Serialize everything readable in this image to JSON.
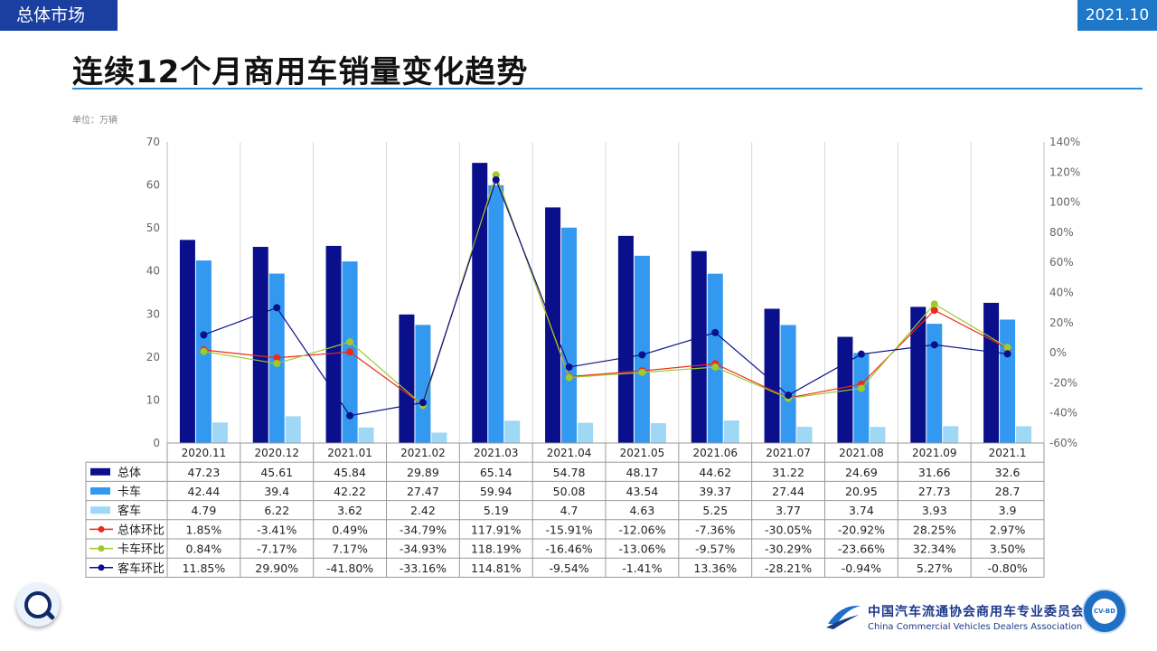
{
  "header": {
    "section_tag": "总体市场",
    "period_tag": "2021.10",
    "title": "连续12个月商用车销量变化趋势",
    "unit": "单位：万辆"
  },
  "footer": {
    "org_cn": "中国汽车流通协会商用车专业委员会",
    "org_en": "China Commercial Vehicles Dealers Association",
    "seal_text": "CV-BD"
  },
  "colors": {
    "total": "#0a0f8c",
    "truck": "#3399f0",
    "bus": "#9fd8f5",
    "total_mom": "#ee2a1a",
    "truck_mom": "#9ccb2e",
    "bus_mom": "#0a0f8c"
  },
  "chart_data": {
    "type": "bar",
    "categories": [
      "2020.11",
      "2020.12",
      "2021.01",
      "2021.02",
      "2021.03",
      "2021.04",
      "2021.05",
      "2021.06",
      "2021.07",
      "2021.08",
      "2021.09",
      "2021.1"
    ],
    "y_left": {
      "min": 0,
      "max": 70,
      "ticks": [
        0,
        10,
        20,
        30,
        40,
        50,
        60,
        70
      ]
    },
    "y_right": {
      "min": -60,
      "max": 140,
      "ticks": [
        "-60%",
        "-40%",
        "-20%",
        "0%",
        "20%",
        "40%",
        "60%",
        "80%",
        "100%",
        "120%",
        "140%"
      ]
    },
    "series": [
      {
        "name": "总体",
        "kind": "bar",
        "color_key": "total",
        "display": [
          "47.23",
          "45.61",
          "45.84",
          "29.89",
          "65.14",
          "54.78",
          "48.17",
          "44.62",
          "31.22",
          "24.69",
          "31.66",
          "32.6"
        ],
        "values": [
          47.23,
          45.61,
          45.84,
          29.89,
          65.14,
          54.78,
          48.17,
          44.62,
          31.22,
          24.69,
          31.66,
          32.6
        ]
      },
      {
        "name": "卡车",
        "kind": "bar",
        "color_key": "truck",
        "display": [
          "42.44",
          "39.4",
          "42.22",
          "27.47",
          "59.94",
          "50.08",
          "43.54",
          "39.37",
          "27.44",
          "20.95",
          "27.73",
          "28.7"
        ],
        "values": [
          42.44,
          39.4,
          42.22,
          27.47,
          59.94,
          50.08,
          43.54,
          39.37,
          27.44,
          20.95,
          27.73,
          28.7
        ]
      },
      {
        "name": "客车",
        "kind": "bar",
        "color_key": "bus",
        "display": [
          "4.79",
          "6.22",
          "3.62",
          "2.42",
          "5.19",
          "4.7",
          "4.63",
          "5.25",
          "3.77",
          "3.74",
          "3.93",
          "3.9"
        ],
        "values": [
          4.79,
          6.22,
          3.62,
          2.42,
          5.19,
          4.7,
          4.63,
          5.25,
          3.77,
          3.74,
          3.93,
          3.9
        ]
      },
      {
        "name": "总体环比",
        "kind": "line",
        "color_key": "total_mom",
        "display": [
          "1.85%",
          "-3.41%",
          "0.49%",
          "-34.79%",
          "117.91%",
          "-15.91%",
          "-12.06%",
          "-7.36%",
          "-30.05%",
          "-20.92%",
          "28.25%",
          "2.97%"
        ],
        "values": [
          1.85,
          -3.41,
          0.49,
          -34.79,
          117.91,
          -15.91,
          -12.06,
          -7.36,
          -30.05,
          -20.92,
          28.25,
          2.97
        ]
      },
      {
        "name": "卡车环比",
        "kind": "line",
        "color_key": "truck_mom",
        "display": [
          "0.84%",
          "-7.17%",
          "7.17%",
          "-34.93%",
          "118.19%",
          "-16.46%",
          "-13.06%",
          "-9.57%",
          "-30.29%",
          "-23.66%",
          "32.34%",
          "3.50%"
        ],
        "values": [
          0.84,
          -7.17,
          7.17,
          -34.93,
          118.19,
          -16.46,
          -13.06,
          -9.57,
          -30.29,
          -23.66,
          32.34,
          3.5
        ]
      },
      {
        "name": "客车环比",
        "kind": "line",
        "color_key": "bus_mom",
        "display": [
          "11.85%",
          "29.90%",
          "-41.80%",
          "-33.16%",
          "114.81%",
          "-9.54%",
          "-1.41%",
          "13.36%",
          "-28.21%",
          "-0.94%",
          "5.27%",
          "-0.80%"
        ],
        "values": [
          11.85,
          29.9,
          -41.8,
          -33.16,
          114.81,
          -9.54,
          -1.41,
          13.36,
          -28.21,
          -0.94,
          5.27,
          -0.8
        ]
      }
    ]
  }
}
